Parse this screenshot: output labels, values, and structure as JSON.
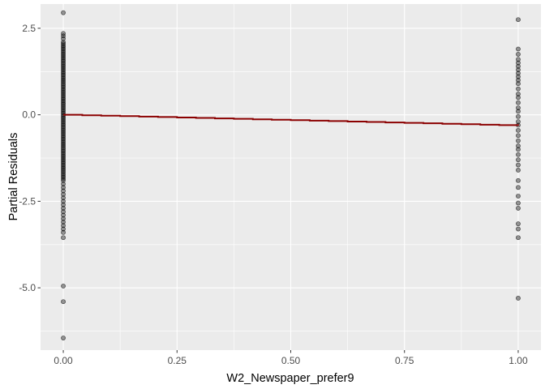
{
  "chart_data": {
    "type": "scatter",
    "xlabel": "W2_Newspaper_prefer9",
    "ylabel": "Partial Residuals",
    "xlim": [
      -0.05,
      1.05
    ],
    "ylim": [
      -6.8,
      3.2
    ],
    "x_ticks": [
      0.0,
      0.25,
      0.5,
      0.75,
      1.0
    ],
    "x_tick_labels": [
      "0.00",
      "0.25",
      "0.50",
      "0.75",
      "1.00"
    ],
    "y_ticks": [
      -5.0,
      -2.5,
      0.0,
      2.5
    ],
    "y_tick_labels": [
      "-5.0",
      "-2.5",
      "0.0",
      "2.5"
    ],
    "grid": true,
    "background": "#ebebeb",
    "grid_color": "#ffffff",
    "point_color": "#000000",
    "point_alpha": 0.4,
    "fit_line_color": "#8b0000",
    "fit_line": {
      "x": [
        0.0,
        0.0417,
        0.0833,
        0.125,
        0.1667,
        0.2083,
        0.25,
        0.2917,
        0.3333,
        0.375,
        0.4167,
        0.4583,
        0.5,
        0.5417,
        0.5833,
        0.625,
        0.6667,
        0.7083,
        0.75,
        0.7917,
        0.8333,
        0.875,
        0.9167,
        0.9583,
        1.0
      ],
      "y": [
        0.0,
        -0.013,
        -0.026,
        -0.039,
        -0.052,
        -0.065,
        -0.078,
        -0.091,
        -0.104,
        -0.117,
        -0.13,
        -0.143,
        -0.156,
        -0.169,
        -0.182,
        -0.195,
        -0.208,
        -0.221,
        -0.234,
        -0.247,
        -0.26,
        -0.273,
        -0.286,
        -0.299,
        -0.312
      ]
    },
    "series": [
      {
        "x": 0.0,
        "y": [
          2.95,
          2.35,
          2.28,
          2.2,
          2.1,
          2.05,
          2.0,
          1.95,
          1.9,
          1.85,
          1.8,
          1.75,
          1.7,
          1.65,
          1.6,
          1.55,
          1.5,
          1.45,
          1.4,
          1.35,
          1.3,
          1.25,
          1.2,
          1.15,
          1.1,
          1.05,
          1.0,
          0.95,
          0.9,
          0.85,
          0.8,
          0.75,
          0.7,
          0.65,
          0.6,
          0.55,
          0.5,
          0.45,
          0.4,
          0.35,
          0.3,
          0.25,
          0.2,
          0.15,
          0.1,
          0.05,
          0.0,
          -0.05,
          -0.1,
          -0.15,
          -0.2,
          -0.25,
          -0.3,
          -0.35,
          -0.4,
          -0.45,
          -0.5,
          -0.55,
          -0.6,
          -0.65,
          -0.7,
          -0.75,
          -0.8,
          -0.85,
          -0.9,
          -0.95,
          -1.0,
          -1.05,
          -1.1,
          -1.15,
          -1.2,
          -1.25,
          -1.3,
          -1.35,
          -1.4,
          -1.45,
          -1.5,
          -1.55,
          -1.6,
          -1.65,
          -1.7,
          -1.75,
          -1.8,
          -1.85,
          -1.9,
          -2.0,
          -2.1,
          -2.2,
          -2.3,
          -2.4,
          -2.5,
          -2.6,
          -2.7,
          -2.8,
          -2.9,
          -3.0,
          -3.1,
          -3.2,
          -3.3,
          -3.4,
          -3.55,
          -4.95,
          -5.4,
          -6.45
        ]
      },
      {
        "x": 1.0,
        "y": [
          2.75,
          1.9,
          1.75,
          1.6,
          1.5,
          1.4,
          1.3,
          1.2,
          1.1,
          1.0,
          0.9,
          0.75,
          0.6,
          0.5,
          0.35,
          0.2,
          0.1,
          -0.05,
          -0.2,
          -0.3,
          -0.45,
          -0.6,
          -0.75,
          -0.9,
          -1.0,
          -1.15,
          -1.3,
          -1.45,
          -1.6,
          -1.9,
          -2.1,
          -2.35,
          -2.55,
          -2.7,
          -3.15,
          -3.3,
          -3.55,
          -5.3
        ]
      }
    ]
  }
}
